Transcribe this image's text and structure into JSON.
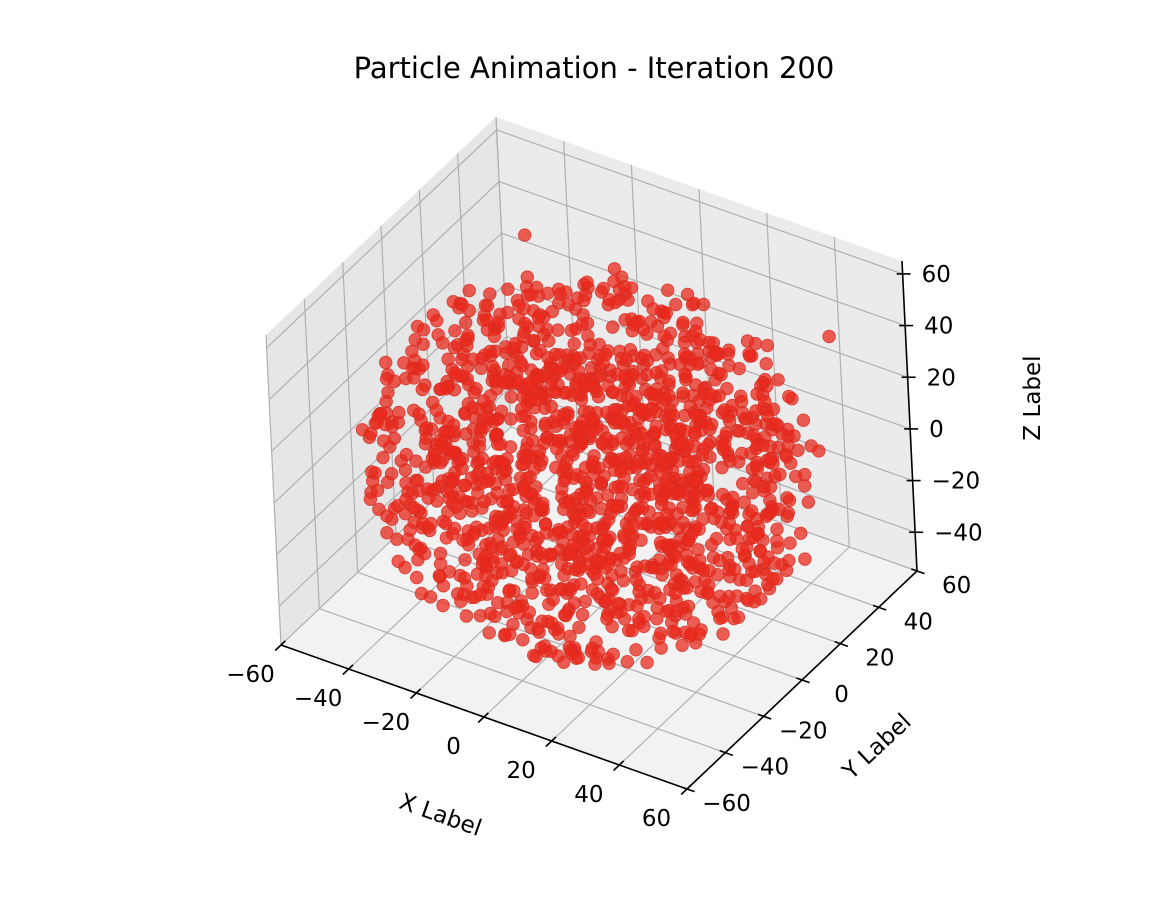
{
  "chart_data": {
    "type": "scatter",
    "projection": "3d",
    "title": "Particle Animation - Iteration 200",
    "xlabel": "X Label",
    "ylabel": "Y Label",
    "zlabel": "Z Label",
    "xlim": [
      -60,
      60
    ],
    "ylim": [
      -60,
      60
    ],
    "zlim": [
      -55,
      65
    ],
    "xticks": [
      -60,
      -40,
      -20,
      0,
      20,
      40,
      60
    ],
    "yticks": [
      -60,
      -40,
      -20,
      0,
      20,
      40,
      60
    ],
    "zticks": [
      -40,
      -20,
      0,
      20,
      40,
      60
    ],
    "tick_labels": {
      "x": [
        "−60",
        "−40",
        "−20",
        "0",
        "20",
        "40",
        "60"
      ],
      "y": [
        "−60",
        "−40",
        "−20",
        "0",
        "20",
        "40",
        "60"
      ],
      "z": [
        "−40",
        "−20",
        "0",
        "20",
        "40",
        "60"
      ]
    },
    "grid": true,
    "marker_color": "#e8291c",
    "pane_color": "#f2f2f2",
    "point_count": 1500,
    "distribution": "random particles filling a sphere of radius about 60 centered at the origin",
    "series": [
      {
        "count": 1500,
        "sample_points": [
          [
            0,
            0,
            0
          ],
          [
            -58,
            -10,
            -3
          ],
          [
            10,
            -20,
            -58
          ],
          [
            40,
            55,
            30
          ],
          [
            -35,
            30,
            52
          ],
          [
            55,
            -30,
            10
          ],
          [
            -20,
            -55,
            -20
          ],
          [
            25,
            40,
            -40
          ]
        ]
      }
    ]
  }
}
